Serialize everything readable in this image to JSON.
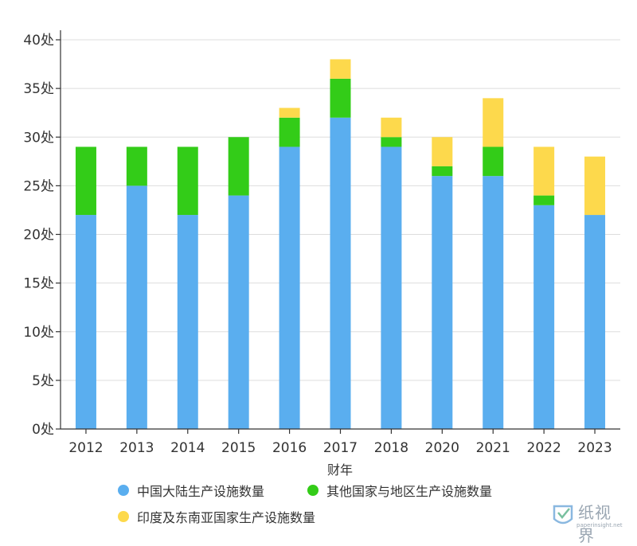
{
  "chart_data": {
    "type": "bar",
    "stacked": true,
    "xlabel": "财年",
    "ylabel": "",
    "ylim": [
      0,
      40
    ],
    "ytick_step": 5,
    "ytick_suffix": "处",
    "grid": true,
    "legend_position": "bottom",
    "categories": [
      "2012",
      "2013",
      "2014",
      "2015",
      "2016",
      "2017",
      "2018",
      "2020",
      "2021",
      "2022",
      "2023"
    ],
    "series": [
      {
        "name": "中国大陆生产设施数量",
        "color": "#5aaeef",
        "values": [
          22,
          25,
          22,
          24,
          29,
          32,
          29,
          26,
          26,
          23,
          22
        ]
      },
      {
        "name": "其他国家与地区生产设施数量",
        "color": "#33cc18",
        "values": [
          7,
          4,
          7,
          6,
          3,
          4,
          1,
          1,
          3,
          1,
          0
        ]
      },
      {
        "name": "印度及东南亚国家生产设施数量",
        "color": "#fdd94c",
        "values": [
          0,
          0,
          0,
          0,
          1,
          2,
          2,
          3,
          5,
          5,
          6
        ]
      }
    ]
  },
  "watermark": {
    "text": "纸视界",
    "sub": "paperinsight.net",
    "icon": "paperinsight-logo-icon"
  }
}
